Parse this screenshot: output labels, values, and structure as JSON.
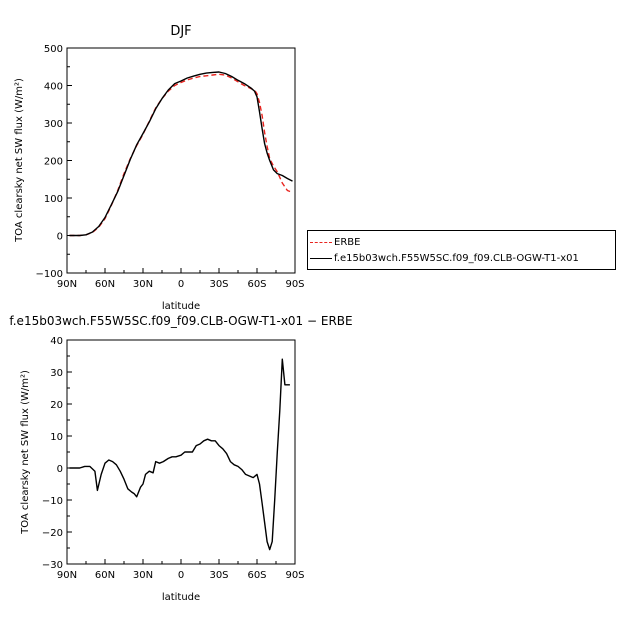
{
  "colors": {
    "model": "#000000",
    "obs": "#e8241f"
  },
  "chart_data": [
    {
      "type": "line",
      "title": "DJF",
      "xlabel": "latitude",
      "ylabel": "TOA clearsky net SW flux (W/m²)",
      "xlim": [
        90,
        -90
      ],
      "ylim": [
        -100,
        500
      ],
      "xticks": [
        90,
        60,
        30,
        0,
        -30,
        -60,
        -90
      ],
      "xtick_labels": [
        "90N",
        "60N",
        "30N",
        "0",
        "30S",
        "60S",
        "90S"
      ],
      "yticks": [
        -100,
        0,
        100,
        200,
        300,
        400,
        500
      ],
      "ytick_labels": [
        "−100",
        "0",
        "100",
        "200",
        "300",
        "400",
        "500"
      ],
      "legend_position": "right",
      "series": [
        {
          "name": "ERBE",
          "color": "#e8241f",
          "dash": true,
          "x": [
            88,
            84,
            80,
            75,
            70,
            65,
            60,
            55,
            50,
            45,
            40,
            35,
            30,
            25,
            20,
            15,
            10,
            5,
            0,
            -5,
            -10,
            -15,
            -20,
            -25,
            -30,
            -35,
            -40,
            -45,
            -50,
            -55,
            -58,
            -60,
            -62,
            -64,
            -66,
            -68,
            -70,
            -73,
            -76,
            -80,
            -84,
            -88
          ],
          "y": [
            0,
            0,
            0,
            2,
            8,
            22,
            45,
            80,
            120,
            165,
            205,
            240,
            270,
            305,
            340,
            365,
            385,
            400,
            408,
            415,
            420,
            424,
            426,
            428,
            430,
            428,
            420,
            410,
            400,
            392,
            388,
            378,
            355,
            320,
            275,
            238,
            205,
            185,
            170,
            140,
            120,
            115
          ]
        },
        {
          "name": "f.e15b03wch.F55W5SC.f09_f09.CLB-OGW-T1-x01",
          "color": "#000000",
          "dash": false,
          "x": [
            88,
            84,
            80,
            75,
            70,
            65,
            60,
            55,
            50,
            45,
            40,
            35,
            30,
            25,
            20,
            15,
            10,
            5,
            0,
            -5,
            -10,
            -15,
            -20,
            -25,
            -30,
            -35,
            -40,
            -45,
            -50,
            -55,
            -58,
            -60,
            -62,
            -64,
            -66,
            -68,
            -70,
            -73,
            -76,
            -80,
            -84,
            -88
          ],
          "y": [
            0,
            0,
            0,
            2,
            9,
            24,
            48,
            82,
            117,
            160,
            203,
            242,
            272,
            303,
            338,
            365,
            388,
            405,
            412,
            420,
            425,
            430,
            433,
            435,
            436,
            432,
            424,
            414,
            405,
            394,
            385,
            370,
            330,
            285,
            245,
            220,
            200,
            175,
            165,
            160,
            152,
            145
          ]
        }
      ]
    },
    {
      "type": "line",
      "title": "f.e15b03wch.F55W5SC.f09_f09.CLB-OGW-T1-x01 − ERBE",
      "xlabel": "latitude",
      "ylabel": "TOA clearsky net SW flux (W/m²)",
      "xlim": [
        90,
        -90
      ],
      "ylim": [
        -30,
        40
      ],
      "xticks": [
        90,
        60,
        30,
        0,
        -30,
        -60,
        -90
      ],
      "xtick_labels": [
        "90N",
        "60N",
        "30N",
        "0",
        "30S",
        "60S",
        "90S"
      ],
      "yticks": [
        -30,
        -20,
        -10,
        0,
        10,
        20,
        30,
        40
      ],
      "ytick_labels": [
        "−30",
        "−20",
        "−10",
        "0",
        "10",
        "20",
        "30",
        "40"
      ],
      "series": [
        {
          "color": "#000000",
          "dash": false,
          "x": [
            88,
            84,
            80,
            76,
            72,
            68,
            66,
            63,
            60,
            57,
            54,
            51,
            48,
            45,
            42,
            39,
            37,
            35,
            32,
            30,
            28,
            25,
            22,
            20,
            17,
            14,
            10,
            7,
            4,
            0,
            -3,
            -6,
            -9,
            -12,
            -15,
            -18,
            -21,
            -24,
            -27,
            -30,
            -33,
            -36,
            -39,
            -42,
            -45,
            -48,
            -51,
            -54,
            -57,
            -60,
            -62,
            -64,
            -66,
            -68,
            -70,
            -72,
            -74,
            -76,
            -78,
            -80,
            -82,
            -84,
            -86
          ],
          "y": [
            0,
            0,
            0,
            0.5,
            0.5,
            -1,
            -7,
            -2,
            1.5,
            2.5,
            2,
            1,
            -1,
            -3.5,
            -6.5,
            -7.5,
            -8,
            -9,
            -6,
            -5,
            -2,
            -1,
            -1.5,
            2,
            1.5,
            2,
            3,
            3.5,
            3.5,
            4,
            5,
            5,
            5,
            7,
            7.5,
            8.5,
            9,
            8.5,
            8.5,
            7,
            6,
            4.5,
            2,
            1,
            0.5,
            -0.5,
            -2,
            -2.5,
            -3,
            -2,
            -5,
            -11,
            -17,
            -23,
            -25.5,
            -23,
            -10,
            5,
            18,
            34,
            26,
            26,
            26
          ]
        }
      ]
    }
  ]
}
